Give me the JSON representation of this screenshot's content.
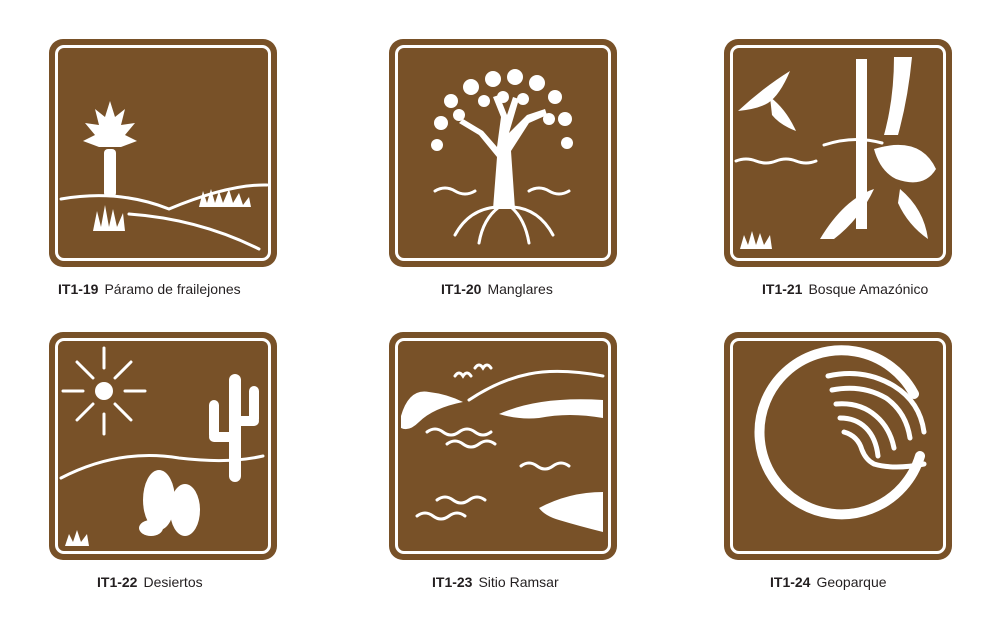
{
  "colors": {
    "sign_brown": "#785128",
    "symbol_white": "#ffffff",
    "caption_text": "#231f20"
  },
  "signs": [
    {
      "code": "IT1-19",
      "name": "Páramo de frailejones",
      "icon": "frailejon-icon"
    },
    {
      "code": "IT1-20",
      "name": "Manglares",
      "icon": "mangrove-tree-icon"
    },
    {
      "code": "IT1-21",
      "name": "Bosque Amazónico",
      "icon": "amazon-forest-icon"
    },
    {
      "code": "IT1-22",
      "name": "Desiertos",
      "icon": "desert-cactus-icon"
    },
    {
      "code": "IT1-23",
      "name": "Sitio Ramsar",
      "icon": "wetland-icon"
    },
    {
      "code": "IT1-24",
      "name": "Geoparque",
      "icon": "geopark-icon"
    }
  ]
}
